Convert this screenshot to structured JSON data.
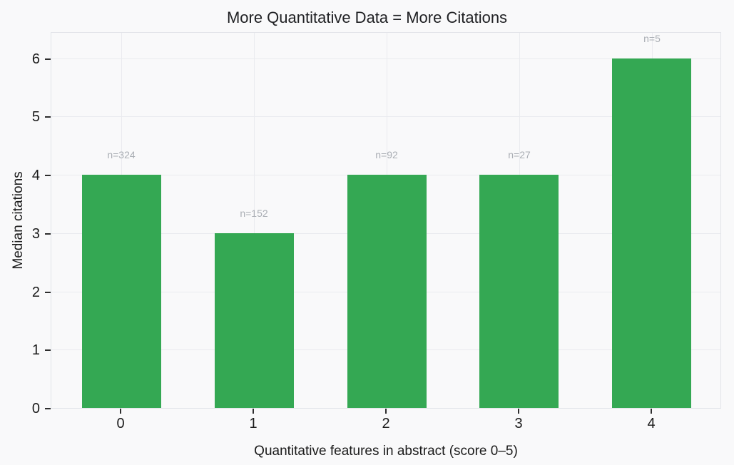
{
  "chart_data": {
    "type": "bar",
    "title": "More Quantitative Data = More Citations",
    "xlabel": "Quantitative features in abstract (score 0–5)",
    "ylabel": "Median citations",
    "categories": [
      "0",
      "1",
      "2",
      "3",
      "4"
    ],
    "values": [
      4,
      3,
      4,
      4,
      6
    ],
    "bar_labels": [
      "n=324",
      "n=152",
      "n=92",
      "n=27",
      "n=5"
    ],
    "yticks": [
      0,
      1,
      2,
      3,
      4,
      5,
      6
    ],
    "ylim": [
      0,
      6.46
    ],
    "grid": true,
    "legend": "none",
    "bar_width_fraction": 0.6,
    "colors": {
      "bar": "#34a853",
      "grid": "#eaebef",
      "spine": "#e2e4e9",
      "background": "#f9f9fa",
      "text": "#1b1b1b",
      "title": "#202124",
      "bar_label": "#aaaeb4",
      "tick_mark": "#2e2e2e"
    }
  }
}
